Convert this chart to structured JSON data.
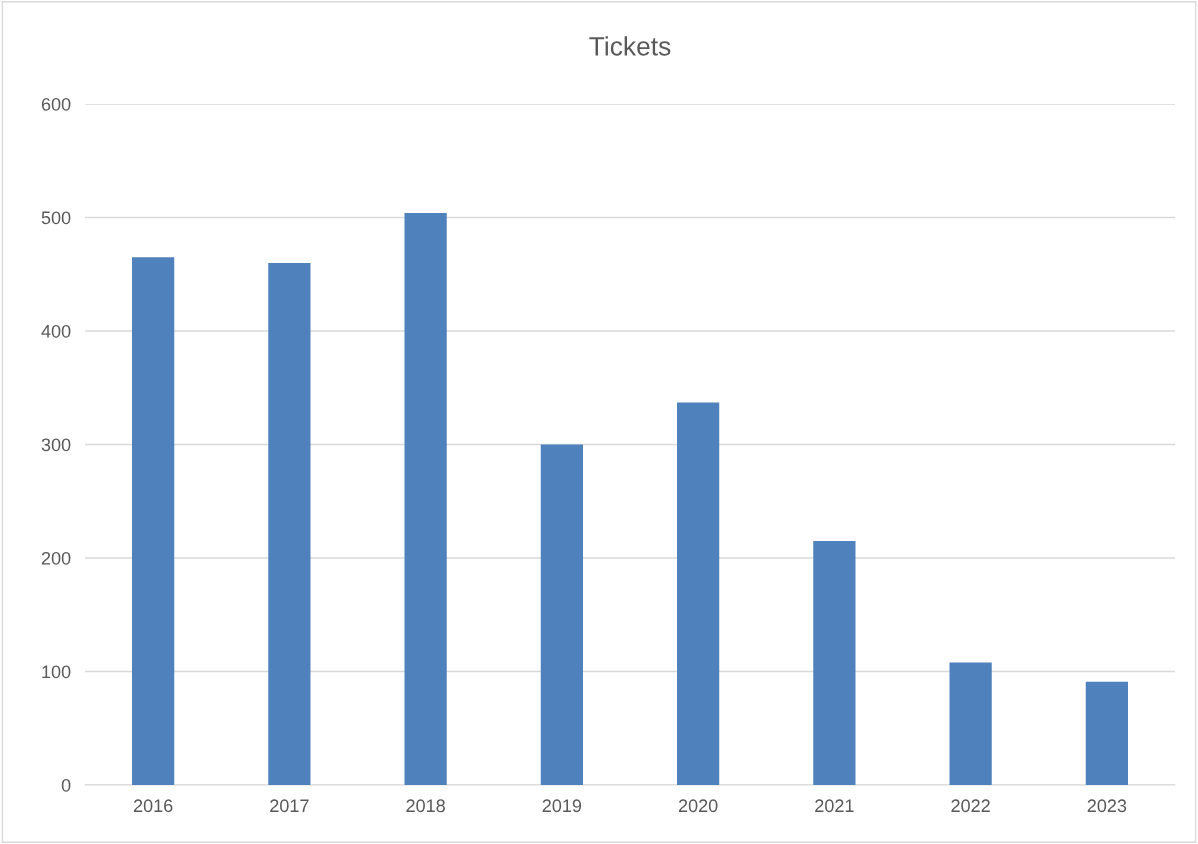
{
  "chart_data": {
    "type": "bar",
    "title": "Tickets",
    "categories": [
      "2016",
      "2017",
      "2018",
      "2019",
      "2020",
      "2021",
      "2022",
      "2023"
    ],
    "values": [
      465,
      460,
      504,
      300,
      337,
      215,
      108,
      91
    ],
    "color": "#4f81bd",
    "ylim": [
      0,
      600
    ],
    "yticks": [
      0,
      100,
      200,
      300,
      400,
      500,
      600
    ],
    "grid": "y",
    "legend": false
  }
}
